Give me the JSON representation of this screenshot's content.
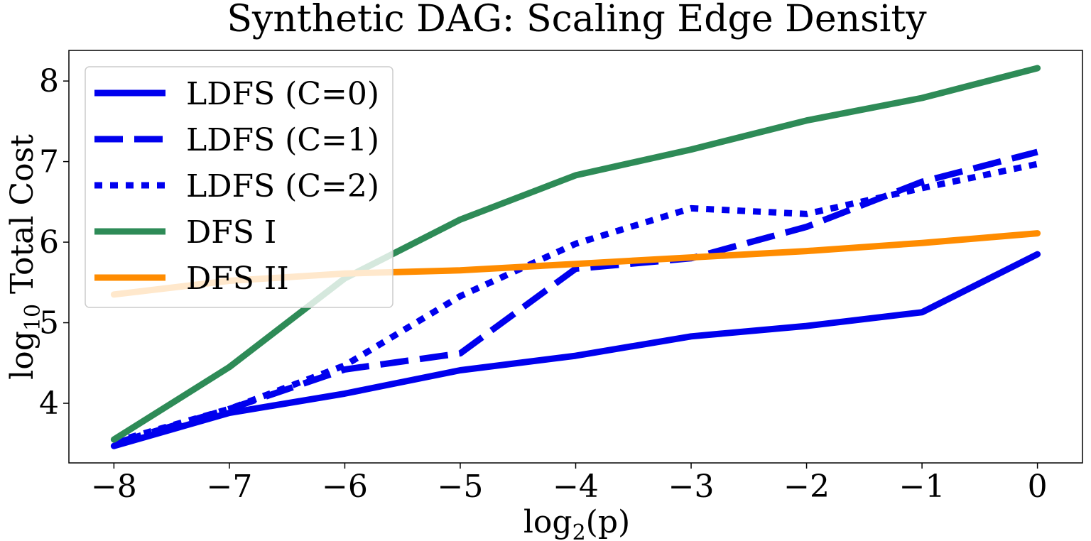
{
  "chart_data": {
    "type": "line",
    "title": "Synthetic DAG: Scaling Edge Density",
    "xlabel_base": "log",
    "xlabel_sub": "2",
    "xlabel_tail": "(p)",
    "ylabel_base": "log",
    "ylabel_sub": "10",
    "ylabel_tail": " Total Cost",
    "x": [
      -8,
      -7,
      -6,
      -5,
      -4,
      -3,
      -2,
      -1,
      0
    ],
    "xticks": [
      -8,
      -7,
      -6,
      -5,
      -4,
      -3,
      -2,
      -1,
      0
    ],
    "xtick_labels": [
      "−8",
      "−7",
      "−6",
      "−5",
      "−4",
      "−3",
      "−2",
      "−1",
      "0"
    ],
    "yticks": [
      4,
      5,
      6,
      7,
      8
    ],
    "ytick_labels": [
      "4",
      "5",
      "6",
      "7",
      "8"
    ],
    "xlim": [
      -8.39,
      0.39
    ],
    "ylim": [
      3.26,
      8.38
    ],
    "grid": false,
    "legend_position": "upper-left",
    "series": [
      {
        "name": "LDFS (C=0)",
        "color": "#0000ee",
        "style": "solid",
        "values": [
          3.47,
          3.88,
          4.12,
          4.41,
          4.59,
          4.83,
          4.96,
          5.13,
          5.85
        ]
      },
      {
        "name": "LDFS (C=1)",
        "color": "#0000ee",
        "style": "dashed",
        "values": [
          3.5,
          3.93,
          4.42,
          4.62,
          5.67,
          5.8,
          6.19,
          6.75,
          7.12
        ]
      },
      {
        "name": "LDFS (C=2)",
        "color": "#0000ee",
        "style": "dotted",
        "values": [
          3.52,
          3.93,
          4.47,
          5.33,
          5.98,
          6.42,
          6.35,
          6.67,
          6.97
        ]
      },
      {
        "name": "DFS I",
        "color": "#2e8b57",
        "style": "solid",
        "values": [
          3.55,
          4.45,
          5.55,
          6.28,
          6.83,
          7.15,
          7.51,
          7.79,
          8.16
        ]
      },
      {
        "name": "DFS II",
        "color": "#ff8c00",
        "style": "solid",
        "values": [
          5.35,
          5.52,
          5.61,
          5.65,
          5.73,
          5.81,
          5.89,
          5.99,
          6.11
        ]
      }
    ]
  }
}
